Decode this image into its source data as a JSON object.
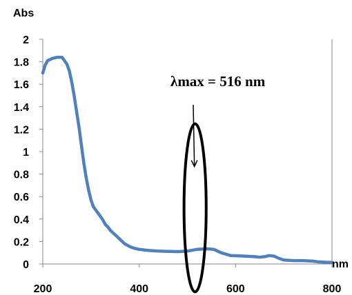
{
  "chart_data": {
    "type": "line",
    "title": "",
    "xlabel": "nm",
    "ylabel": "Abs",
    "xlim": [
      200,
      800
    ],
    "ylim": [
      0,
      2
    ],
    "x_ticks": [
      "200",
      "400",
      "600",
      "800"
    ],
    "y_ticks": [
      "0",
      "0.2",
      "0.4",
      "0.6",
      "0.8",
      "1",
      "1.2",
      "1.4",
      "1.6",
      "1.8",
      "2"
    ],
    "grid": false,
    "legend": "none",
    "series": [
      {
        "color": "#4f81bd",
        "points": [
          [
            200,
            1.7
          ],
          [
            205,
            1.77
          ],
          [
            210,
            1.81
          ],
          [
            220,
            1.83
          ],
          [
            230,
            1.84
          ],
          [
            240,
            1.84
          ],
          [
            250,
            1.78
          ],
          [
            255,
            1.72
          ],
          [
            260,
            1.62
          ],
          [
            265,
            1.5
          ],
          [
            270,
            1.36
          ],
          [
            275,
            1.22
          ],
          [
            280,
            1.06
          ],
          [
            285,
            0.9
          ],
          [
            290,
            0.77
          ],
          [
            295,
            0.66
          ],
          [
            300,
            0.57
          ],
          [
            305,
            0.51
          ],
          [
            310,
            0.48
          ],
          [
            315,
            0.45
          ],
          [
            320,
            0.42
          ],
          [
            325,
            0.39
          ],
          [
            330,
            0.35
          ],
          [
            335,
            0.33
          ],
          [
            340,
            0.3
          ],
          [
            350,
            0.26
          ],
          [
            360,
            0.22
          ],
          [
            370,
            0.18
          ],
          [
            380,
            0.155
          ],
          [
            390,
            0.14
          ],
          [
            400,
            0.13
          ],
          [
            420,
            0.12
          ],
          [
            440,
            0.115
          ],
          [
            460,
            0.112
          ],
          [
            480,
            0.11
          ],
          [
            500,
            0.115
          ],
          [
            520,
            0.13
          ],
          [
            540,
            0.135
          ],
          [
            555,
            0.13
          ],
          [
            570,
            0.1
          ],
          [
            590,
            0.075
          ],
          [
            620,
            0.07
          ],
          [
            640,
            0.065
          ],
          [
            650,
            0.06
          ],
          [
            660,
            0.065
          ],
          [
            670,
            0.075
          ],
          [
            680,
            0.07
          ],
          [
            690,
            0.05
          ],
          [
            700,
            0.035
          ],
          [
            720,
            0.03
          ],
          [
            740,
            0.03
          ],
          [
            760,
            0.025
          ],
          [
            770,
            0.02
          ],
          [
            790,
            0.015
          ],
          [
            800,
            0.015
          ]
        ]
      }
    ],
    "annotation": {
      "text": "λmax = 516 nm",
      "ellipse_center": [
        516,
        0.5
      ],
      "ellipse_x_halfwidth": 46,
      "ellipse_y_halfheight": 0.88,
      "arrow_tip": [
        516,
        0.88
      ]
    }
  }
}
